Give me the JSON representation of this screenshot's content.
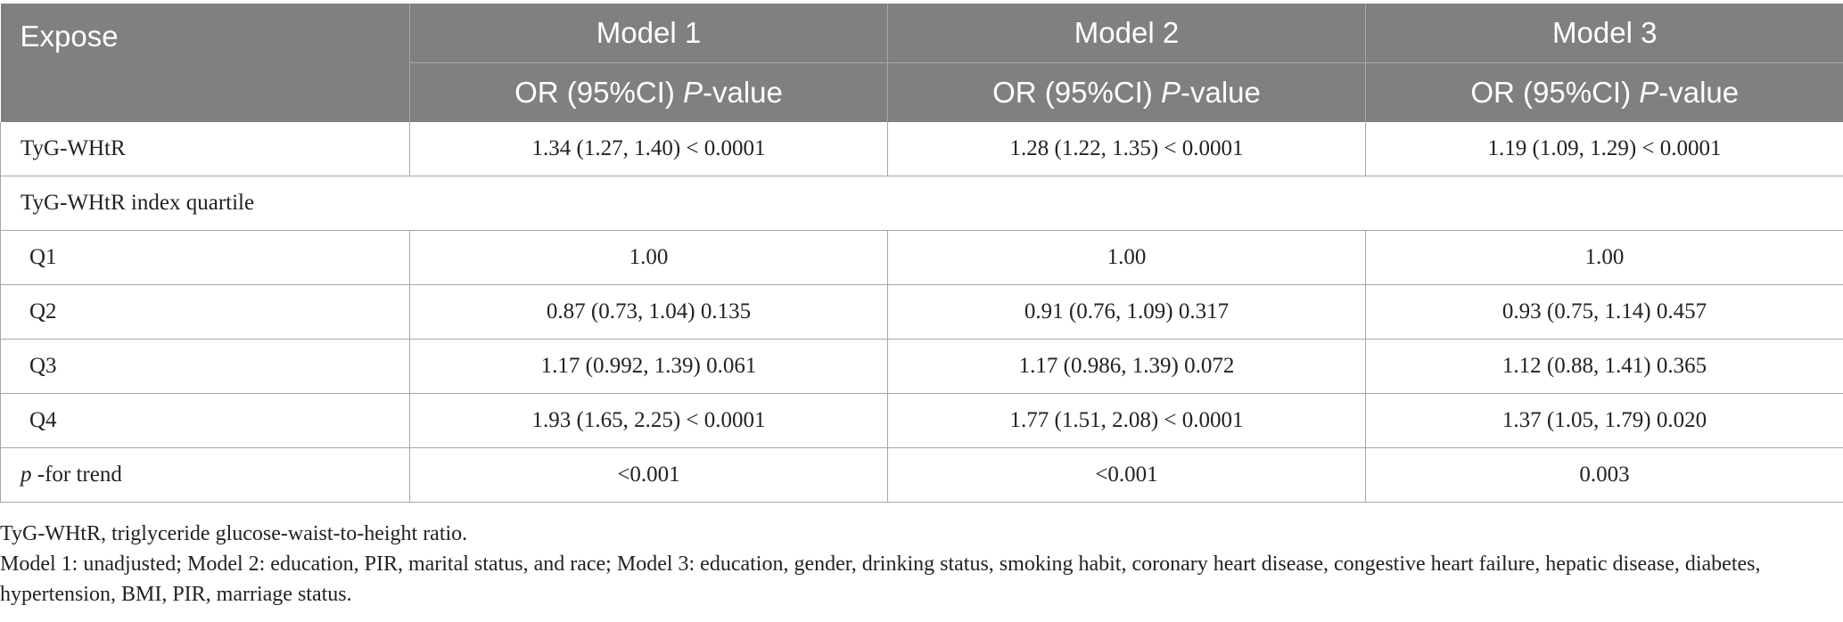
{
  "table": {
    "header": {
      "expose": "Expose",
      "models": [
        "Model 1",
        "Model 2",
        "Model 3"
      ],
      "sub_prefix": "OR (95%CI) ",
      "sub_italic": "P",
      "sub_suffix": "-value"
    },
    "rows": {
      "tyg": {
        "label": "TyG-WHtR",
        "m1": "1.34 (1.27, 1.40) < 0.0001",
        "m2": "1.28 (1.22, 1.35) < 0.0001",
        "m3": "1.19 (1.09, 1.29) < 0.0001"
      },
      "quartile_heading": "TyG-WHtR index quartile",
      "q1": {
        "label": "Q1",
        "m1": "1.00",
        "m2": "1.00",
        "m3": "1.00"
      },
      "q2": {
        "label": "Q2",
        "m1": "0.87 (0.73, 1.04) 0.135",
        "m2": "0.91 (0.76, 1.09) 0.317",
        "m3": "0.93 (0.75, 1.14) 0.457"
      },
      "q3": {
        "label": "Q3",
        "m1": "1.17 (0.992, 1.39) 0.061",
        "m2": "1.17 (0.986, 1.39) 0.072",
        "m3": "1.12 (0.88, 1.41) 0.365"
      },
      "q4": {
        "label": "Q4",
        "m1": "1.93 (1.65, 2.25) < 0.0001",
        "m2": "1.77 (1.51, 2.08) < 0.0001",
        "m3": "1.37 (1.05, 1.79) 0.020"
      },
      "trend": {
        "label_italic": "p",
        "label_rest": " -for trend",
        "m1": "<0.001",
        "m2": "<0.001",
        "m3": "0.003"
      }
    }
  },
  "footnotes": {
    "abbrev": "TyG-WHtR, triglyceride glucose-waist-to-height ratio.",
    "models": "Model 1: unadjusted; Model 2: education, PIR, marital status, and race; Model 3: education, gender, drinking status, smoking habit, coronary heart disease, congestive heart failure, hepatic disease, diabetes, hypertension, BMI, PIR, marriage status."
  },
  "colors": {
    "header_bg": "#808080",
    "header_text": "#ffffff",
    "grid": "#a7a7a7"
  }
}
